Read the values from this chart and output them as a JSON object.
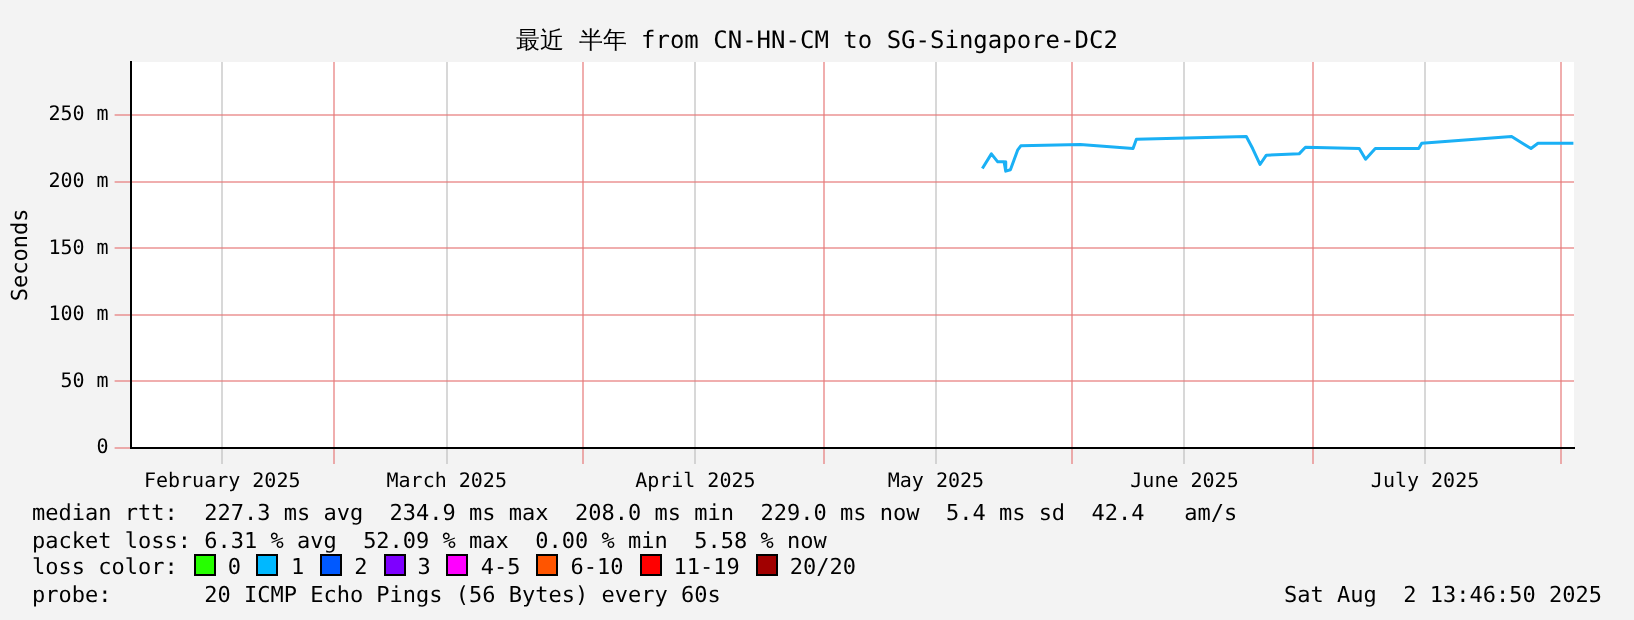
{
  "chart_data": {
    "type": "line",
    "title": "最近 半年 from CN-HN-CM to SG-Singapore-DC2",
    "ylabel": "Seconds",
    "xlim": [
      "2025-02-03T13:46",
      "2025-08-02T13:46"
    ],
    "xticks": [
      {
        "value": "2025-02-15",
        "label": "February 2025"
      },
      {
        "value": "2025-03-01",
        "label": null
      },
      {
        "value": "2025-03-15",
        "label": "March 2025"
      },
      {
        "value": "2025-04-01",
        "label": null
      },
      {
        "value": "2025-04-15",
        "label": "April 2025"
      },
      {
        "value": "2025-05-01",
        "label": null
      },
      {
        "value": "2025-05-15",
        "label": "May 2025"
      },
      {
        "value": "2025-06-01",
        "label": null
      },
      {
        "value": "2025-06-15",
        "label": "June 2025"
      },
      {
        "value": "2025-07-01",
        "label": null
      },
      {
        "value": "2025-07-15",
        "label": "July 2025"
      },
      {
        "value": "2025-08-01",
        "label": null
      }
    ],
    "ylim": [
      0,
      290
    ],
    "yticks": [
      0,
      {
        "value": 50,
        "label": "50 m"
      },
      {
        "value": 100,
        "label": "100 m"
      },
      {
        "value": 150,
        "label": "150 m"
      },
      {
        "value": 200,
        "label": "200 m"
      },
      {
        "value": 250,
        "label": "250 m"
      }
    ],
    "grid": true,
    "legend": "bottom",
    "legend_title": "loss color:",
    "marker": "none",
    "line_style": "solid",
    "series": [
      {
        "color": "#1ab0f5",
        "x": [
          "2025-05-20T19:00",
          "2025-05-21T22:00",
          "2025-05-22T17:00",
          "2025-05-23T12:00",
          "2025-05-23T17:00",
          "2025-05-24T07:00",
          "2025-05-25T05:00",
          "2025-05-25T14:00",
          "2025-06-02T00:00",
          "2025-06-08T14:00",
          "2025-06-09T00:00",
          "2025-06-22T17:00",
          "2025-06-23T12:00",
          "2025-06-24T10:00",
          "2025-06-25T05:00",
          "2025-06-29T07:00",
          "2025-06-30T02:00",
          "2025-07-06T19:00",
          "2025-07-07T14:00",
          "2025-07-08T19:00",
          "2025-07-14T05:00",
          "2025-07-14T14:00",
          "2025-07-25T19:00",
          "2025-07-28T05:00",
          "2025-07-29T02:00",
          "2025-08-02T12:00"
        ],
        "values": [
          210,
          221,
          215,
          215,
          208,
          209,
          224,
          227,
          228,
          225,
          232,
          234,
          225,
          213,
          220,
          221,
          226,
          225,
          217,
          225,
          225,
          229,
          234,
          225,
          229,
          229
        ]
      },
      {
        "name": "0",
        "color": "#26ff00"
      },
      {
        "name": "1",
        "color": "#00b8ff"
      },
      {
        "name": "2",
        "color": "#0059ff"
      },
      {
        "name": "3",
        "color": "#7e00ff"
      },
      {
        "name": "4-5",
        "color": "#ff00ff"
      },
      {
        "name": "6-10",
        "color": "#ff5500"
      },
      {
        "name": "11-19",
        "color": "#ff0000"
      },
      {
        "name": "20/20",
        "color": "#a10000"
      }
    ],
    "annotations": [
      "median rtt:  227.3 ms avg  234.9 ms max  208.0 ms min  229.0 ms now  5.4 ms sd  42.4   am/s",
      "packet loss: 6.31 % avg  52.09 % max  0.00 % min  5.58 % now",
      "probe:       20 ICMP Echo Pings (56 Bytes) every 60s",
      "Sat Aug  2 13:46:50 2025"
    ]
  }
}
